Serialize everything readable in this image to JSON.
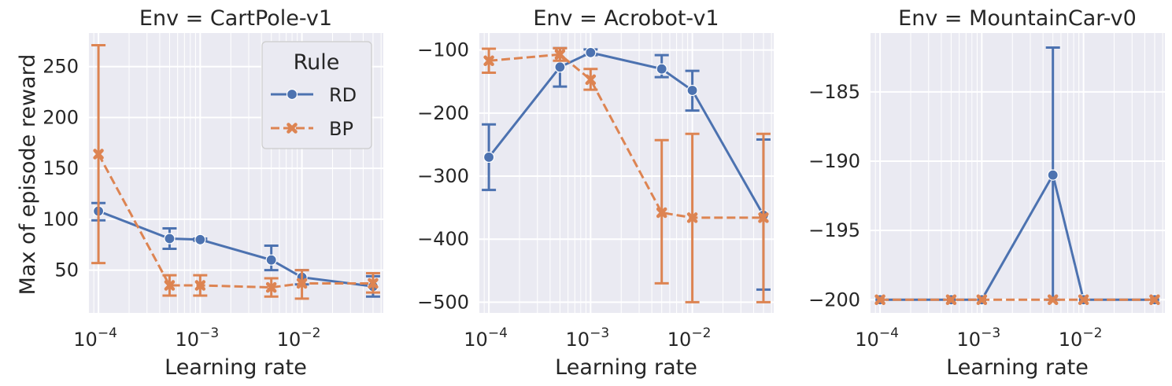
{
  "chart_data": [
    {
      "type": "line",
      "title": "Env = CartPole-v1",
      "xlabel": "Learning rate",
      "ylabel": "Max of episode reward",
      "xscale": "log",
      "xlim": [
        7.92e-05,
        0.0631
      ],
      "ylim": [
        8,
        283
      ],
      "xticks": [
        {
          "base": "10",
          "exp": "−4"
        },
        {
          "base": "10",
          "exp": "−3"
        },
        {
          "base": "10",
          "exp": "−2"
        }
      ],
      "yticks": [
        {
          "v": 50,
          "label": "50"
        },
        {
          "v": 100,
          "label": "100"
        },
        {
          "v": 150,
          "label": "150"
        },
        {
          "v": 200,
          "label": "200"
        },
        {
          "v": 250,
          "label": "250"
        }
      ],
      "grid": true,
      "legend": {
        "title": "Rule",
        "position": "upper right"
      },
      "x": [
        0.0001,
        0.0005,
        0.001,
        0.005,
        0.01,
        0.05
      ],
      "series": [
        {
          "name": "RD",
          "marker": "circle",
          "color": "#4c72b0",
          "dash": false,
          "values": [
            108,
            81,
            80,
            60,
            43,
            34
          ],
          "err_low": [
            99,
            71,
            79,
            50,
            36,
            24
          ],
          "err_high": [
            116,
            91,
            81,
            74,
            50,
            44
          ]
        },
        {
          "name": "BP",
          "marker": "x",
          "color": "#dd8452",
          "dash": true,
          "values": [
            164,
            35,
            35,
            33,
            37,
            37
          ],
          "err_low": [
            57,
            25,
            25,
            24,
            22,
            28
          ],
          "err_high": [
            271,
            45,
            45,
            42,
            50,
            47
          ]
        }
      ]
    },
    {
      "type": "line",
      "title": "Env = Acrobot-v1",
      "xlabel": "Learning rate",
      "ylabel": "",
      "xscale": "log",
      "xlim": [
        7.92e-05,
        0.0631
      ],
      "ylim": [
        -517,
        -73
      ],
      "xticks": [
        {
          "base": "10",
          "exp": "−4"
        },
        {
          "base": "10",
          "exp": "−3"
        },
        {
          "base": "10",
          "exp": "−2"
        }
      ],
      "yticks": [
        {
          "v": -500,
          "label": "−500"
        },
        {
          "v": -400,
          "label": "−400"
        },
        {
          "v": -300,
          "label": "−300"
        },
        {
          "v": -200,
          "label": "−200"
        },
        {
          "v": -100,
          "label": "−100"
        }
      ],
      "grid": true,
      "x": [
        0.0001,
        0.0005,
        0.001,
        0.005,
        0.01,
        0.05
      ],
      "series": [
        {
          "name": "RD",
          "marker": "circle",
          "color": "#4c72b0",
          "dash": false,
          "values": [
            -270,
            -127,
            -104,
            -130,
            -164,
            -362
          ],
          "err_low": [
            -322,
            -158,
            -108,
            -143,
            -196,
            -480
          ],
          "err_high": [
            -218,
            -97,
            -99,
            -108,
            -133,
            -242
          ]
        },
        {
          "name": "BP",
          "marker": "x",
          "color": "#dd8452",
          "dash": true,
          "values": [
            -117,
            -107,
            -147,
            -358,
            -366,
            -366
          ],
          "err_low": [
            -136,
            -117,
            -163,
            -470,
            -500,
            -500
          ],
          "err_high": [
            -98,
            -97,
            -130,
            -243,
            -233,
            -233
          ]
        }
      ]
    },
    {
      "type": "line",
      "title": "Env = MountainCar-v0",
      "xlabel": "Learning rate",
      "ylabel": "",
      "xscale": "log",
      "xlim": [
        7.92e-05,
        0.0631
      ],
      "ylim": [
        -200.95,
        -180.75
      ],
      "xticks": [
        {
          "base": "10",
          "exp": "−4"
        },
        {
          "base": "10",
          "exp": "−3"
        },
        {
          "base": "10",
          "exp": "−2"
        }
      ],
      "yticks": [
        {
          "v": -200,
          "label": "−200"
        },
        {
          "v": -195,
          "label": "−195"
        },
        {
          "v": -190,
          "label": "−190"
        },
        {
          "v": -185,
          "label": "−185"
        }
      ],
      "grid": true,
      "x": [
        0.0001,
        0.0005,
        0.001,
        0.005,
        0.01,
        0.05
      ],
      "series": [
        {
          "name": "RD",
          "marker": "circle",
          "color": "#4c72b0",
          "dash": false,
          "values": [
            -200,
            -200,
            -200,
            -191,
            -200,
            -200
          ],
          "err_low": [
            -200,
            -200,
            -200,
            -200,
            -200,
            -200
          ],
          "err_high": [
            -200,
            -200,
            -200,
            -181.8,
            -200,
            -200
          ]
        },
        {
          "name": "BP",
          "marker": "x",
          "color": "#dd8452",
          "dash": true,
          "values": [
            -200,
            -200,
            -200,
            -200,
            -200,
            -200
          ],
          "err_low": [
            -200,
            -200,
            -200,
            -200,
            -200,
            -200
          ],
          "err_high": [
            -200,
            -200,
            -200,
            -200,
            -200,
            -200
          ]
        }
      ]
    }
  ]
}
